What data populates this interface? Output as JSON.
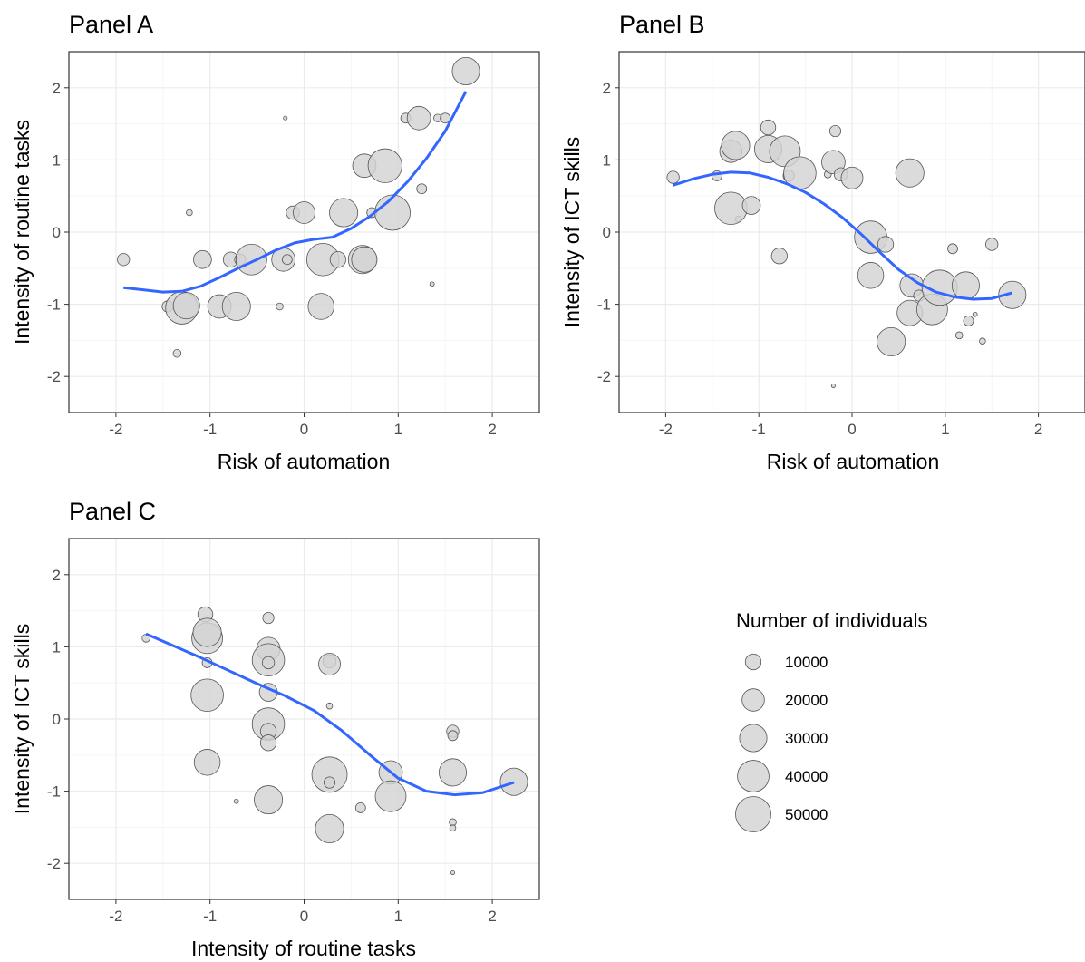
{
  "legend": {
    "title": "Number of individuals",
    "items": [
      {
        "label": "10000",
        "value": 10000
      },
      {
        "label": "20000",
        "value": 20000
      },
      {
        "label": "30000",
        "value": 30000
      },
      {
        "label": "40000",
        "value": 40000
      },
      {
        "label": "50000",
        "value": 50000
      }
    ]
  },
  "colors": {
    "point_fill": "#d3d3d3",
    "point_stroke": "#555555",
    "smooth_line": "#3366ff",
    "grid_major": "#ebebeb",
    "grid_minor": "#f5f5f5",
    "panel_border": "#333333"
  },
  "chart_data": [
    {
      "type": "scatter",
      "title": "Panel A",
      "xlabel": "Risk of automation",
      "ylabel": "Intensity of routine tasks",
      "xlim": [
        -2.5,
        2.5
      ],
      "ylim": [
        -2.5,
        2.5
      ],
      "xticks": [
        "-2",
        "-1",
        "0",
        "1",
        "2"
      ],
      "yticks": [
        "-2",
        "-1",
        "0",
        "1",
        "2"
      ],
      "points": [
        {
          "x": -1.92,
          "y": -0.38,
          "size": 6000
        },
        {
          "x": -1.45,
          "y": -1.03,
          "size": 5000
        },
        {
          "x": -1.35,
          "y": -1.68,
          "size": 2500
        },
        {
          "x": -1.3,
          "y": -1.05,
          "size": 42000
        },
        {
          "x": -1.25,
          "y": -1.02,
          "size": 28000
        },
        {
          "x": -1.22,
          "y": 0.27,
          "size": 1500
        },
        {
          "x": -1.08,
          "y": -0.38,
          "size": 13000
        },
        {
          "x": -0.9,
          "y": -1.03,
          "size": 22000
        },
        {
          "x": -0.78,
          "y": -0.38,
          "size": 9000
        },
        {
          "x": -0.72,
          "y": -1.03,
          "size": 32000
        },
        {
          "x": -0.68,
          "y": -0.38,
          "size": 5000
        },
        {
          "x": -0.56,
          "y": -0.38,
          "size": 38000
        },
        {
          "x": -0.26,
          "y": -1.03,
          "size": 2000
        },
        {
          "x": -0.22,
          "y": -0.38,
          "size": 22000
        },
        {
          "x": -0.18,
          "y": -0.38,
          "size": 4000
        },
        {
          "x": -0.2,
          "y": 1.58,
          "size": 600
        },
        {
          "x": -0.12,
          "y": 0.27,
          "size": 7000
        },
        {
          "x": 0.0,
          "y": 0.27,
          "size": 19000
        },
        {
          "x": 0.18,
          "y": -1.03,
          "size": 27000
        },
        {
          "x": 0.2,
          "y": -0.38,
          "size": 42000
        },
        {
          "x": 0.36,
          "y": -0.38,
          "size": 10000
        },
        {
          "x": 0.42,
          "y": 0.27,
          "size": 32000
        },
        {
          "x": 0.62,
          "y": -0.38,
          "size": 32000
        },
        {
          "x": 0.64,
          "y": -0.38,
          "size": 26000
        },
        {
          "x": 0.64,
          "y": 0.92,
          "size": 22000
        },
        {
          "x": 0.72,
          "y": 0.27,
          "size": 4000
        },
        {
          "x": 0.86,
          "y": 0.92,
          "size": 46000
        },
        {
          "x": 0.94,
          "y": 0.27,
          "size": 50000
        },
        {
          "x": 1.08,
          "y": 1.58,
          "size": 4000
        },
        {
          "x": 1.22,
          "y": 1.58,
          "size": 22000
        },
        {
          "x": 1.25,
          "y": 0.6,
          "size": 4000
        },
        {
          "x": 1.36,
          "y": -0.72,
          "size": 800
        },
        {
          "x": 1.42,
          "y": 1.58,
          "size": 2500
        },
        {
          "x": 1.5,
          "y": 1.58,
          "size": 4000
        },
        {
          "x": 1.72,
          "y": 2.23,
          "size": 30000
        }
      ],
      "smooth": [
        {
          "x": -1.92,
          "y": -0.77
        },
        {
          "x": -1.7,
          "y": -0.8
        },
        {
          "x": -1.5,
          "y": -0.83
        },
        {
          "x": -1.3,
          "y": -0.82
        },
        {
          "x": -1.1,
          "y": -0.75
        },
        {
          "x": -0.9,
          "y": -0.63
        },
        {
          "x": -0.7,
          "y": -0.5
        },
        {
          "x": -0.5,
          "y": -0.38
        },
        {
          "x": -0.3,
          "y": -0.25
        },
        {
          "x": -0.1,
          "y": -0.15
        },
        {
          "x": 0.1,
          "y": -0.1
        },
        {
          "x": 0.3,
          "y": -0.07
        },
        {
          "x": 0.5,
          "y": 0.05
        },
        {
          "x": 0.7,
          "y": 0.22
        },
        {
          "x": 0.9,
          "y": 0.43
        },
        {
          "x": 1.1,
          "y": 0.7
        },
        {
          "x": 1.3,
          "y": 1.02
        },
        {
          "x": 1.5,
          "y": 1.4
        },
        {
          "x": 1.72,
          "y": 1.95
        }
      ]
    },
    {
      "type": "scatter",
      "title": "Panel B",
      "xlabel": "Risk of automation",
      "ylabel": "Intensity of ICT skills",
      "xlim": [
        -2.5,
        2.5
      ],
      "ylim": [
        -2.5,
        2.5
      ],
      "xticks": [
        "-2",
        "-1",
        "0",
        "1",
        "2"
      ],
      "yticks": [
        "-2",
        "-1",
        "0",
        "1",
        "2"
      ],
      "points": [
        {
          "x": -1.92,
          "y": 0.76,
          "size": 6000
        },
        {
          "x": -1.45,
          "y": 0.78,
          "size": 4000
        },
        {
          "x": -1.35,
          "y": 1.12,
          "size": 2500
        },
        {
          "x": -1.3,
          "y": 1.12,
          "size": 20000
        },
        {
          "x": -1.25,
          "y": 1.2,
          "size": 32000
        },
        {
          "x": -1.22,
          "y": 0.18,
          "size": 1500
        },
        {
          "x": -1.3,
          "y": 0.33,
          "size": 42000
        },
        {
          "x": -1.08,
          "y": 0.37,
          "size": 13000
        },
        {
          "x": -0.9,
          "y": 1.45,
          "size": 9000
        },
        {
          "x": -0.9,
          "y": 1.15,
          "size": 30000
        },
        {
          "x": -0.78,
          "y": -0.33,
          "size": 10000
        },
        {
          "x": -0.72,
          "y": 1.12,
          "size": 38000
        },
        {
          "x": -0.68,
          "y": 0.78,
          "size": 5000
        },
        {
          "x": -0.56,
          "y": 0.82,
          "size": 42000
        },
        {
          "x": -0.26,
          "y": 0.8,
          "size": 2000
        },
        {
          "x": -0.18,
          "y": 1.4,
          "size": 5000
        },
        {
          "x": -0.2,
          "y": -2.13,
          "size": 600
        },
        {
          "x": -0.2,
          "y": 0.97,
          "size": 22000
        },
        {
          "x": -0.12,
          "y": 0.8,
          "size": 7000
        },
        {
          "x": 0.0,
          "y": 0.75,
          "size": 19000
        },
        {
          "x": 0.2,
          "y": -0.6,
          "size": 27000
        },
        {
          "x": 0.2,
          "y": -0.07,
          "size": 42000
        },
        {
          "x": 0.36,
          "y": -0.17,
          "size": 10000
        },
        {
          "x": 0.42,
          "y": -1.52,
          "size": 32000
        },
        {
          "x": 0.62,
          "y": -1.12,
          "size": 26000
        },
        {
          "x": 0.62,
          "y": 0.82,
          "size": 32000
        },
        {
          "x": 0.64,
          "y": -0.74,
          "size": 22000
        },
        {
          "x": 0.72,
          "y": -0.88,
          "size": 5000
        },
        {
          "x": 0.86,
          "y": -1.07,
          "size": 38000
        },
        {
          "x": 0.94,
          "y": -0.77,
          "size": 50000
        },
        {
          "x": 1.08,
          "y": -0.23,
          "size": 4000
        },
        {
          "x": 1.15,
          "y": -1.43,
          "size": 2000
        },
        {
          "x": 1.22,
          "y": -0.74,
          "size": 30000
        },
        {
          "x": 1.25,
          "y": -1.23,
          "size": 4000
        },
        {
          "x": 1.32,
          "y": -1.14,
          "size": 800
        },
        {
          "x": 1.4,
          "y": -1.51,
          "size": 1500
        },
        {
          "x": 1.5,
          "y": -0.17,
          "size": 6000
        },
        {
          "x": 1.72,
          "y": -0.87,
          "size": 30000
        }
      ],
      "smooth": [
        {
          "x": -1.92,
          "y": 0.65
        },
        {
          "x": -1.7,
          "y": 0.74
        },
        {
          "x": -1.5,
          "y": 0.8
        },
        {
          "x": -1.3,
          "y": 0.83
        },
        {
          "x": -1.1,
          "y": 0.82
        },
        {
          "x": -0.9,
          "y": 0.76
        },
        {
          "x": -0.7,
          "y": 0.67
        },
        {
          "x": -0.5,
          "y": 0.55
        },
        {
          "x": -0.3,
          "y": 0.39
        },
        {
          "x": -0.1,
          "y": 0.2
        },
        {
          "x": 0.1,
          "y": -0.03
        },
        {
          "x": 0.3,
          "y": -0.28
        },
        {
          "x": 0.5,
          "y": -0.52
        },
        {
          "x": 0.7,
          "y": -0.7
        },
        {
          "x": 0.9,
          "y": -0.83
        },
        {
          "x": 1.1,
          "y": -0.9
        },
        {
          "x": 1.3,
          "y": -0.93
        },
        {
          "x": 1.5,
          "y": -0.92
        },
        {
          "x": 1.72,
          "y": -0.84
        }
      ]
    },
    {
      "type": "scatter",
      "title": "Panel C",
      "xlabel": "Intensity of routine tasks",
      "ylabel": "Intensity of ICT skills",
      "xlim": [
        -2.5,
        2.5
      ],
      "ylim": [
        -2.5,
        2.5
      ],
      "xticks": [
        "-2",
        "-1",
        "0",
        "1",
        "2"
      ],
      "yticks": [
        "-2",
        "-1",
        "0",
        "1",
        "2"
      ],
      "points": [
        {
          "x": -1.68,
          "y": 1.12,
          "size": 2500
        },
        {
          "x": -1.05,
          "y": 1.45,
          "size": 9000
        },
        {
          "x": -1.03,
          "y": 1.12,
          "size": 38000
        },
        {
          "x": -1.03,
          "y": 1.2,
          "size": 32000
        },
        {
          "x": -1.03,
          "y": 0.78,
          "size": 4000
        },
        {
          "x": -1.03,
          "y": 0.33,
          "size": 42000
        },
        {
          "x": -1.03,
          "y": -0.6,
          "size": 27000
        },
        {
          "x": -0.72,
          "y": -1.14,
          "size": 800
        },
        {
          "x": -0.38,
          "y": 1.4,
          "size": 5000
        },
        {
          "x": -0.38,
          "y": 0.97,
          "size": 22000
        },
        {
          "x": -0.38,
          "y": 0.82,
          "size": 42000
        },
        {
          "x": -0.38,
          "y": 0.78,
          "size": 6000
        },
        {
          "x": -0.38,
          "y": 0.37,
          "size": 13000
        },
        {
          "x": -0.38,
          "y": -0.07,
          "size": 42000
        },
        {
          "x": -0.38,
          "y": -0.17,
          "size": 10000
        },
        {
          "x": -0.38,
          "y": -0.33,
          "size": 10000
        },
        {
          "x": -0.38,
          "y": -1.12,
          "size": 32000
        },
        {
          "x": 0.27,
          "y": 0.8,
          "size": 7000
        },
        {
          "x": 0.27,
          "y": 0.76,
          "size": 19000
        },
        {
          "x": 0.27,
          "y": 0.18,
          "size": 1500
        },
        {
          "x": 0.27,
          "y": -0.77,
          "size": 50000
        },
        {
          "x": 0.27,
          "y": -0.88,
          "size": 5000
        },
        {
          "x": 0.27,
          "y": -1.52,
          "size": 32000
        },
        {
          "x": 0.6,
          "y": -1.23,
          "size": 4000
        },
        {
          "x": 0.92,
          "y": -0.74,
          "size": 22000
        },
        {
          "x": 0.92,
          "y": -1.07,
          "size": 38000
        },
        {
          "x": 1.58,
          "y": -0.17,
          "size": 6000
        },
        {
          "x": 1.58,
          "y": -0.23,
          "size": 4000
        },
        {
          "x": 1.58,
          "y": -0.74,
          "size": 30000
        },
        {
          "x": 1.58,
          "y": -1.43,
          "size": 2000
        },
        {
          "x": 1.58,
          "y": -1.51,
          "size": 1500
        },
        {
          "x": 1.58,
          "y": -2.13,
          "size": 600
        },
        {
          "x": 2.23,
          "y": -0.87,
          "size": 30000
        }
      ],
      "smooth": [
        {
          "x": -1.68,
          "y": 1.18
        },
        {
          "x": -1.4,
          "y": 1.02
        },
        {
          "x": -1.1,
          "y": 0.85
        },
        {
          "x": -0.8,
          "y": 0.67
        },
        {
          "x": -0.5,
          "y": 0.49
        },
        {
          "x": -0.2,
          "y": 0.32
        },
        {
          "x": 0.1,
          "y": 0.12
        },
        {
          "x": 0.4,
          "y": -0.16
        },
        {
          "x": 0.7,
          "y": -0.5
        },
        {
          "x": 1.0,
          "y": -0.82
        },
        {
          "x": 1.3,
          "y": -1.0
        },
        {
          "x": 1.6,
          "y": -1.05
        },
        {
          "x": 1.9,
          "y": -1.02
        },
        {
          "x": 2.23,
          "y": -0.88
        }
      ]
    }
  ]
}
